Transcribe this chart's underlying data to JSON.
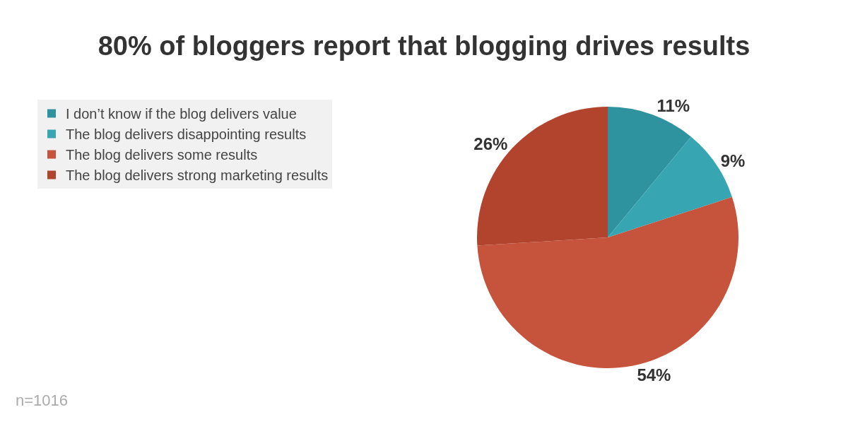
{
  "chart_data": {
    "type": "pie",
    "title": "80% of bloggers report that blogging drives results",
    "categories": [
      "I don’t know if the blog delivers value",
      "The blog delivers disappointing results",
      "The blog delivers some results",
      "The blog delivers strong marketing results"
    ],
    "values": [
      11,
      9,
      54,
      26
    ],
    "colors": [
      "#2e929f",
      "#38a5b2",
      "#c6543c",
      "#b2442d"
    ],
    "value_labels": [
      "11%",
      "9%",
      "54%",
      "26%"
    ],
    "legend": "top left",
    "annotations": [
      "n=1016"
    ]
  }
}
